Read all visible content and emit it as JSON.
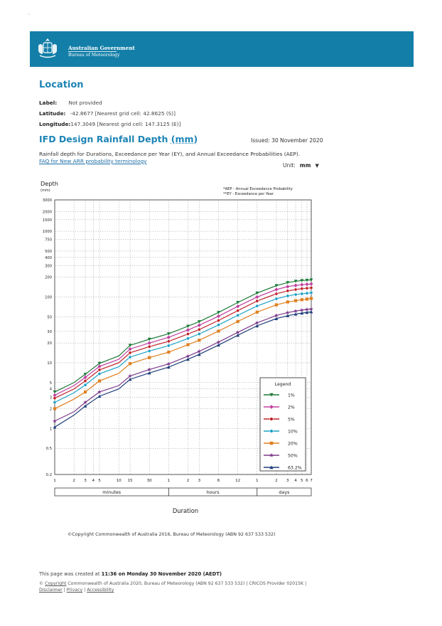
{
  "header": {
    "gov_line1": "Australian Government",
    "gov_line2": "Bureau of Meteorology",
    "banner_color": "#137fa8"
  },
  "location": {
    "heading": "Location",
    "label_key": "Label:",
    "label_value": "Not provided",
    "latitude_key": "Latitude:",
    "latitude_value": "-42.8677 [Nearest grid cell: 42.8625 (S)]",
    "longitude_key": "Longitude:",
    "longitude_value": "147.3049 [Nearest grid cell: 147.3125 (E)]"
  },
  "ifd": {
    "title": "IFD Design Rainfall Depth",
    "title_unit": "(mm)",
    "issued": "Issued: 30 November 2020",
    "description": "Rainfall depth for Durations, Exceedance per Year (EY), and Annual Exceedance Probabilities (AEP).",
    "faq_link": "FAQ for New ARR probability terminology",
    "unit_label": "Unit:",
    "unit_value": "mm"
  },
  "chart_data": {
    "type": "line",
    "title": "",
    "ylabel": "Depth",
    "ylabel_unit": "(mm)",
    "xlabel": "Duration",
    "yscale": "log",
    "xscale": "log",
    "ylim": [
      0.2,
      3000
    ],
    "grid": true,
    "annotation_lines": [
      "*AEP - Annual Exceedance Probability",
      "**EY - Exceedance per Year"
    ],
    "yticks": [
      0.2,
      0.5,
      1,
      2,
      3,
      4,
      5,
      10,
      20,
      30,
      50,
      100,
      200,
      300,
      400,
      500,
      750,
      1000,
      1500,
      2000,
      3000
    ],
    "ytick_labels": [
      "0.2",
      "0.5",
      "1",
      "2",
      "3",
      "4",
      "5",
      "10",
      "20",
      "30",
      "50",
      "100",
      "200",
      "300",
      "400",
      "500",
      "750",
      "1000",
      "1500",
      "2000",
      "3000"
    ],
    "x_minutes": [
      1,
      2,
      3,
      5,
      10,
      15,
      30,
      60,
      120,
      180,
      360,
      720,
      1440,
      2880,
      4320,
      5760,
      7200,
      8640,
      10080
    ],
    "xtick_labels": [
      "1",
      "2",
      "3",
      "4",
      "5",
      "10",
      "15",
      "30",
      "1",
      "2",
      "3",
      "6",
      "12",
      "1",
      "2",
      "3",
      "4",
      "5",
      "6",
      "7"
    ],
    "xtick_minutes": [
      1,
      2,
      3,
      4,
      5,
      10,
      15,
      30,
      60,
      120,
      180,
      360,
      720,
      1440,
      2880,
      4320,
      5760,
      7200,
      8640,
      10080
    ],
    "x_groups": [
      "minutes",
      "hours",
      "days"
    ],
    "marker_x_minutes": [
      1,
      3,
      5,
      15,
      30,
      60,
      120,
      180,
      360,
      720,
      1440,
      2880,
      4320,
      5760,
      7200,
      8640,
      10080
    ],
    "legend_title": "Legend",
    "legend_position": "lower-right",
    "series": [
      {
        "name": "1%",
        "color": "#1f7a3a",
        "marker": "triangle-down",
        "values": [
          3.6,
          5.0,
          6.7,
          9.8,
          12.7,
          18.4,
          22.8,
          27.6,
          36.0,
          42.2,
          58.3,
          82.5,
          115,
          149,
          166,
          174,
          178,
          180,
          182
        ]
      },
      {
        "name": "2%",
        "color": "#c040a0",
        "marker": "diamond",
        "values": [
          3.2,
          4.5,
          6.0,
          8.8,
          11.3,
          16.2,
          20.0,
          24.4,
          31.6,
          37.2,
          51.0,
          72.0,
          100,
          130,
          144,
          150,
          154,
          156,
          158
        ]
      },
      {
        "name": "5%",
        "color": "#c0202a",
        "marker": "circle",
        "values": [
          2.9,
          4.0,
          5.3,
          7.8,
          10.0,
          14.2,
          17.6,
          21.2,
          27.4,
          32.0,
          44.0,
          62.0,
          87,
          112,
          124,
          130,
          134,
          136,
          138
        ]
      },
      {
        "name": "10%",
        "color": "#1aa0c8",
        "marker": "circle",
        "values": [
          2.5,
          3.5,
          4.6,
          6.8,
          8.7,
          12.2,
          15.1,
          18.2,
          23.4,
          27.4,
          37.6,
          52.7,
          73,
          94,
          104,
          109,
          112,
          114,
          116
        ]
      },
      {
        "name": "20%",
        "color": "#e08020",
        "marker": "square",
        "values": [
          2.0,
          2.8,
          3.6,
          5.3,
          6.9,
          9.7,
          12.0,
          14.5,
          18.8,
          22.0,
          30.3,
          42.5,
          59,
          76,
          84,
          88,
          91,
          93,
          95
        ]
      },
      {
        "name": "50%",
        "color": "#7d3a8a",
        "marker": "star",
        "values": [
          1.3,
          1.8,
          2.5,
          3.6,
          4.5,
          6.3,
          7.9,
          9.6,
          12.6,
          14.9,
          20.6,
          29.0,
          40.5,
          52.4,
          58.0,
          61.2,
          63.2,
          64.6,
          65.8
        ]
      },
      {
        "name": "63.2%",
        "color": "#1f3f7a",
        "marker": "triangle-up",
        "values": [
          1.05,
          1.6,
          2.2,
          3.1,
          4.0,
          5.6,
          7.0,
          8.6,
          11.3,
          13.4,
          18.6,
          26.2,
          36.5,
          47.0,
          52.0,
          55.0,
          57.0,
          58.4,
          59.6
        ]
      }
    ]
  },
  "copyright_chart": "©Copyright Commonwealth of Australia 2016, Bureau of Meteorology (ABN 92 637 533 532)",
  "footer": {
    "created_prefix": "This page was created at ",
    "created_bold": "11:36 on Monday 30 November 2020 (AEDT)",
    "line1_sym": "©",
    "line1_link": "Copyright",
    "line1_rest": " Commonwealth of Australia 2020, Bureau of Meteorology (ABN 92 637 533 532) | CRICOS Provider 02015K |",
    "disclaimer": "Disclaimer",
    "privacy": "Privacy",
    "accessibility": "Accessibility",
    "sep": " | "
  }
}
